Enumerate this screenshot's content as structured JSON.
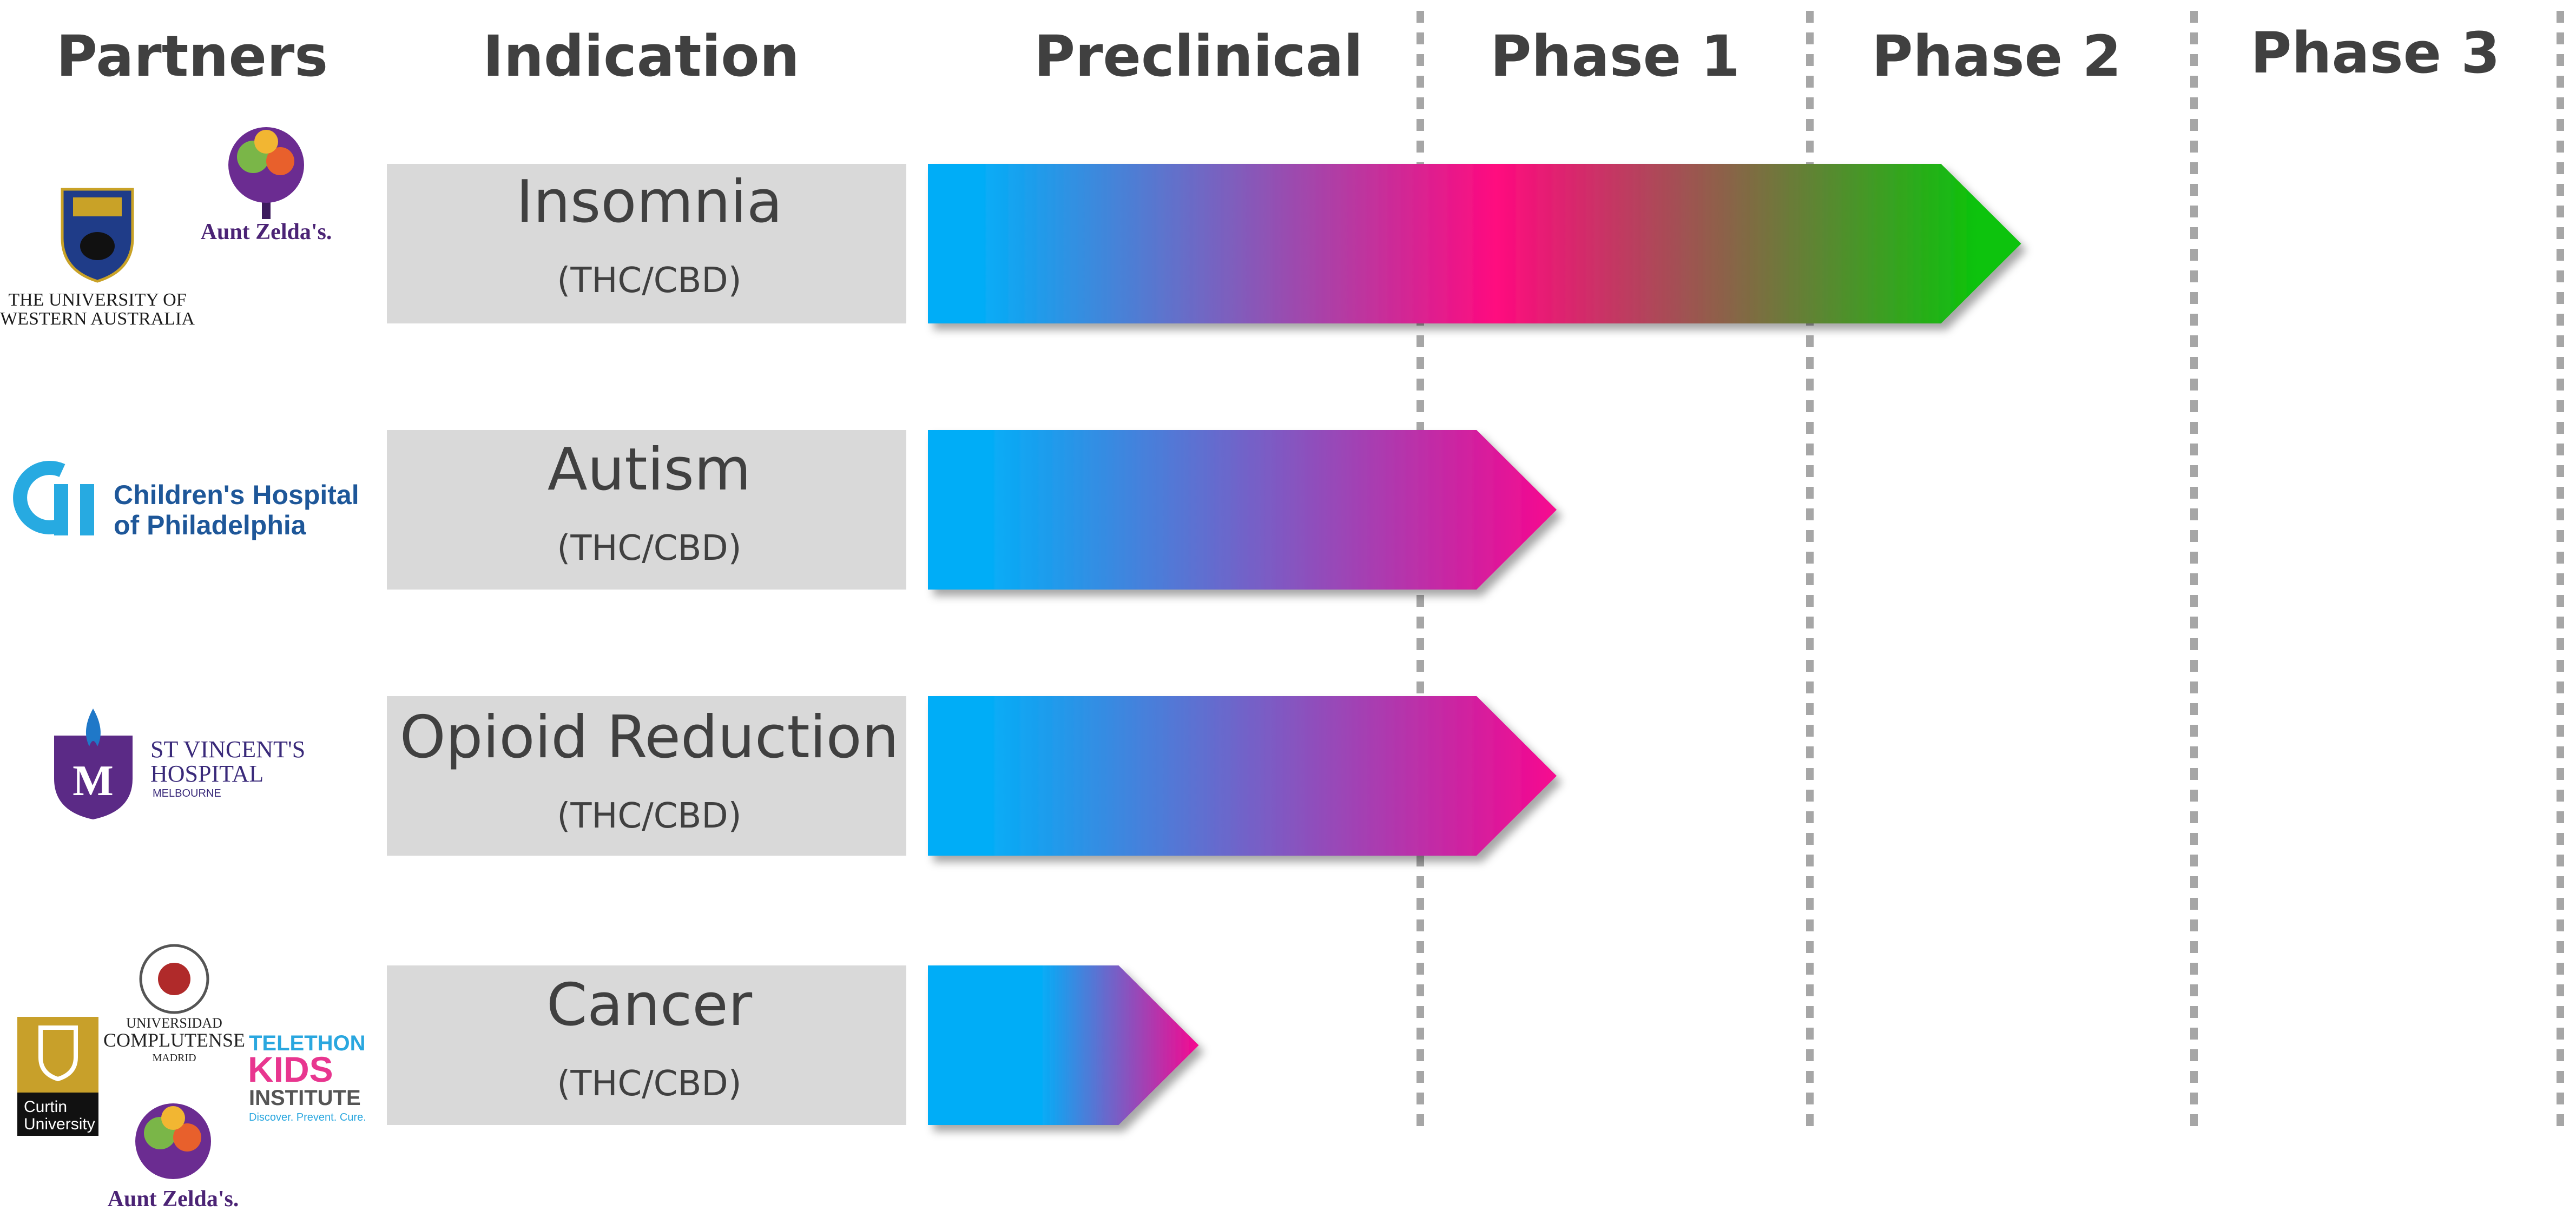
{
  "headers": {
    "partners": "Partners",
    "indication": "Indication",
    "preclinical": "Preclinical",
    "phase1": "Phase 1",
    "phase2": "Phase 2",
    "phase3": "Phase 3"
  },
  "rows": [
    {
      "indication": "Insomnia",
      "subtitle": "(THC/CBD)",
      "progress_stage": 2.55,
      "gradient": [
        "#05adf7",
        "#ff007f",
        "#0cc30c"
      ],
      "partners": {
        "uwa_line1": "THE UNIVERSITY OF",
        "uwa_line2": "WESTERN AUSTRALIA",
        "aunt_zelda": "Aunt Zelda's."
      }
    },
    {
      "indication": "Autism",
      "subtitle": "(THC/CBD)",
      "progress_stage": 1.35,
      "gradient": [
        "#05adf7",
        "#f7078f"
      ],
      "partners": {
        "chop_line1": "Children's Hospital",
        "chop_line2": "of Philadelphia"
      }
    },
    {
      "indication": "Opioid Reduction",
      "subtitle": "(THC/CBD)",
      "progress_stage": 1.35,
      "gradient": [
        "#05adf7",
        "#f7078f"
      ],
      "partners": {
        "svh_line1": "ST VINCENT'S",
        "svh_line2": "HOSPITAL",
        "svh_line3": "MELBOURNE"
      }
    },
    {
      "indication": "Cancer",
      "subtitle": "(THC/CBD)",
      "progress_stage": 0.55,
      "gradient": [
        "#05adf7",
        "#f7078f"
      ],
      "partners": {
        "curtin_line1": "Curtin",
        "curtin_line2": "University",
        "ucm_line1": "UNIVERSIDAD",
        "ucm_line2": "COMPLUTENSE",
        "ucm_line3": "MADRID",
        "telethon_line1": "TELETHON",
        "telethon_line2": "KIDS",
        "telethon_line3": "INSTITUTE",
        "telethon_tagline": "Discover. Prevent. Cure.",
        "aunt_zelda": "Aunt Zelda's."
      }
    }
  ],
  "colors": {
    "header_text": "#404040",
    "label_box": "#d9d9d9",
    "divider": "#a6a6a6"
  }
}
